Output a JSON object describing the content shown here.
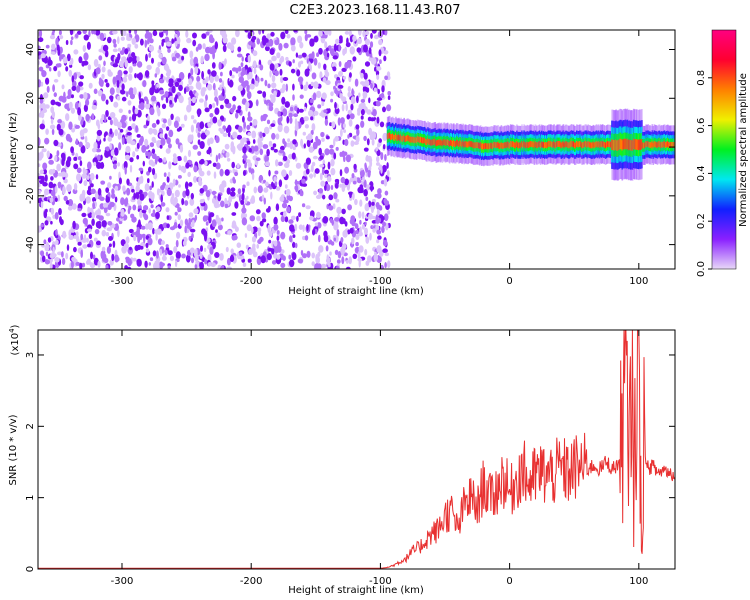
{
  "title": "C2E3.2023.168.11.43.R07",
  "chart_data": [
    {
      "type": "heatmap",
      "xlabel": "Height of straight line (km)",
      "ylabel": "Frequency (Hz)",
      "xlim": [
        -365,
        128
      ],
      "ylim": [
        -50,
        48
      ],
      "xticks": [
        -300,
        -200,
        -100,
        0,
        100
      ],
      "yticks": [
        -40,
        -20,
        0,
        20,
        40
      ],
      "colorbar": {
        "label": "Normalized spectral amplitude",
        "range": [
          0,
          1
        ],
        "ticks": [
          0.0,
          0.2,
          0.4,
          0.6,
          0.8
        ],
        "tick_labels": [
          "0.0",
          "0.2",
          "0.4",
          "0.6",
          "0.8"
        ],
        "colormap": [
          "#e8d8f8",
          "#8a20ff",
          "#1020ff",
          "#00e8f0",
          "#00f020",
          "#f0f000",
          "#ff8000",
          "#ff0030",
          "#ff0080"
        ]
      },
      "noise_region": {
        "x": [
          -365,
          -93
        ],
        "y": [
          -50,
          48
        ],
        "amplitude": [
          0.0,
          0.12
        ]
      },
      "signal_band": [
        {
          "x": -95,
          "y": 4.5
        },
        {
          "x": -80,
          "y": 3.5
        },
        {
          "x": -60,
          "y": 2.0
        },
        {
          "x": -40,
          "y": 1.5
        },
        {
          "x": -20,
          "y": 0.5
        },
        {
          "x": 0,
          "y": 1.0
        },
        {
          "x": 20,
          "y": 1.0
        },
        {
          "x": 50,
          "y": 1.0
        },
        {
          "x": 80,
          "y": 1.0
        },
        {
          "x": 95,
          "y": 1.0
        },
        {
          "x": 110,
          "y": 1.0
        },
        {
          "x": 128,
          "y": 1.0
        }
      ],
      "grid": false,
      "legend": "colorbar-right"
    },
    {
      "type": "line",
      "xlabel": "Height of straight line (km)",
      "ylabel": "SNR (10 * v/v)",
      "yscale_label": "(x10",
      "yscale_exp": "4",
      "yscale_close": ")",
      "xlim": [
        -365,
        128
      ],
      "ylim": [
        0,
        3.35
      ],
      "xticks": [
        -300,
        -200,
        -100,
        0,
        100
      ],
      "yticks": [
        0,
        1,
        2,
        3
      ],
      "color": "#e83030",
      "grid": false,
      "series": [
        {
          "x": [
            -365,
            -300,
            -200,
            -100,
            -95,
            -90,
            -85,
            -80,
            -75,
            -70,
            -65,
            -60,
            -55,
            -50,
            -45,
            -40,
            -35,
            -30,
            -25,
            -20,
            -15,
            -10,
            -5,
            0,
            5,
            10,
            15,
            20,
            25,
            30,
            35,
            40,
            45,
            50,
            55,
            60,
            65,
            70,
            75,
            80,
            85,
            88,
            90,
            92,
            94,
            96,
            98,
            100,
            102,
            104,
            106,
            110,
            115,
            120,
            128
          ],
          "y": [
            0.01,
            0.01,
            0.01,
            0.01,
            0.02,
            0.05,
            0.1,
            0.15,
            0.25,
            0.3,
            0.4,
            0.5,
            0.55,
            0.75,
            0.8,
            0.55,
            0.9,
            1.0,
            0.85,
            1.2,
            1.0,
            1.1,
            1.3,
            1.05,
            1.25,
            1.4,
            1.2,
            1.3,
            1.35,
            1.3,
            1.35,
            1.4,
            1.35,
            1.4,
            1.45,
            1.4,
            1.45,
            1.4,
            1.5,
            1.4,
            1.5,
            2.2,
            3.2,
            0.8,
            3.1,
            1.0,
            2.5,
            3.35,
            0.2,
            2.0,
            1.4,
            1.45,
            1.35,
            1.4,
            1.3
          ]
        }
      ]
    }
  ]
}
